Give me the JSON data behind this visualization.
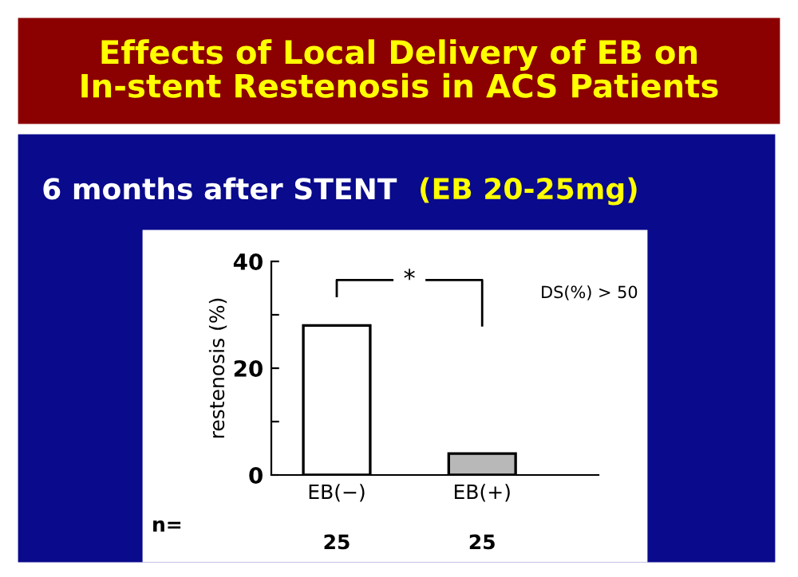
{
  "chart_data": {
    "type": "bar",
    "title": "Effects of Local Delivery of EB on\nIn-stent Restenosis in ACS Patients",
    "subtitle": "6 months after STENT",
    "ylabel": "restenosis (%)",
    "categories": [
      "EB(−)",
      "EB(+)"
    ],
    "values": [
      28,
      4
    ],
    "colors": [
      "#ffffff",
      "#b8b8b8"
    ],
    "ylim": [
      0,
      40
    ],
    "yticks": [
      0,
      {
        "value": 10,
        "label": null
      },
      20,
      {
        "value": 30,
        "label": null
      },
      40
    ],
    "grid": false,
    "annotations": [
      "*",
      "DS(%) > 50",
      "(EB 20-25mg)",
      "n=",
      "25",
      "25"
    ]
  }
}
